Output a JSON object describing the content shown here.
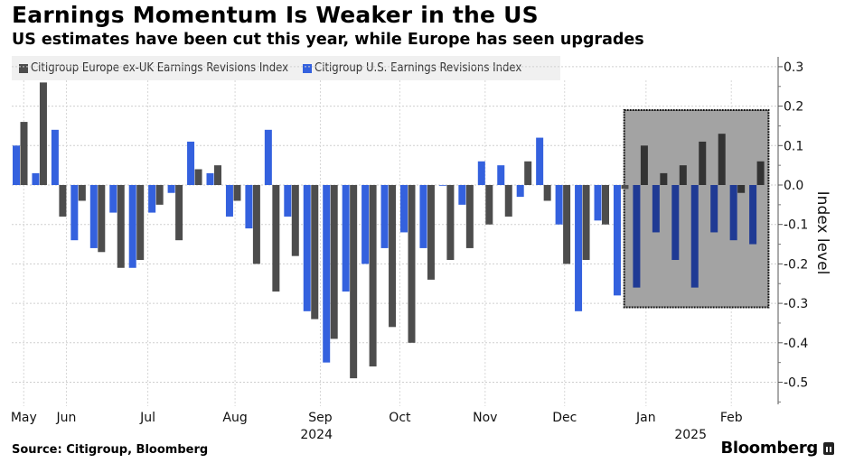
{
  "title": "Earnings Momentum Is Weaker in the US",
  "subtitle": "US estimates have been cut this year, while Europe has seen upgrades",
  "source": "Source: Citigroup, Bloomberg",
  "brand": "Bloomberg",
  "colors": {
    "europe": "#4d4d4d",
    "us": "#3461de",
    "europe_highlight": "#333333",
    "us_highlight": "#1f3a94",
    "highlight_box": "#a3a3a3",
    "legend_bg": "#f0f0f0"
  },
  "chart_data": {
    "type": "bar",
    "title": "Earnings Momentum Is Weaker in the US",
    "subtitle": "US estimates have been cut this year, while Europe has seen upgrades",
    "ylabel": "Index level",
    "xlabel": "",
    "ylim": [
      -0.55,
      0.32
    ],
    "yticks": [
      0.3,
      0.2,
      0.1,
      0.0,
      -0.1,
      -0.2,
      -0.3,
      -0.4,
      -0.5
    ],
    "ytick_labels": [
      "0.3",
      "0.2",
      "0.1",
      "0.0",
      "-0.1",
      "-0.2",
      "-0.3",
      "-0.4",
      "-0.5"
    ],
    "y_axis_position": "right",
    "grid": true,
    "legend_position": "top-left",
    "x_tick_labels": [
      {
        "label": "May",
        "index": 0.2
      },
      {
        "label": "Jun",
        "index": 2.4
      },
      {
        "label": "Jul",
        "index": 6.6
      },
      {
        "label": "Aug",
        "index": 11.1
      },
      {
        "label": "Sep",
        "index": 15.5
      },
      {
        "label": "Oct",
        "index": 19.6
      },
      {
        "label": "Nov",
        "index": 24.0
      },
      {
        "label": "Dec",
        "index": 28.1
      },
      {
        "label": "Jan",
        "index": 32.3
      },
      {
        "label": "Feb",
        "index": 36.7
      }
    ],
    "x_year_labels": [
      {
        "label": "2024",
        "index": 15.3
      },
      {
        "label": "2025",
        "index": 34.6
      }
    ],
    "highlight_region": {
      "start_index": 31.5,
      "end_index": 38.9,
      "y_top": 0.19,
      "y_bottom": -0.31
    },
    "series": [
      {
        "name": "Citigroup Europe ex-UK Earnings Revisions Index",
        "color_key": "europe",
        "values": [
          0.16,
          0.26,
          -0.08,
          -0.04,
          -0.17,
          -0.21,
          -0.19,
          -0.05,
          -0.14,
          0.04,
          0.05,
          -0.04,
          -0.2,
          -0.27,
          -0.18,
          -0.34,
          -0.39,
          -0.49,
          -0.46,
          -0.36,
          -0.4,
          -0.24,
          -0.19,
          -0.16,
          -0.1,
          -0.08,
          0.06,
          -0.04,
          -0.2,
          -0.19,
          -0.1,
          -0.01,
          0.1,
          0.03,
          0.05,
          0.11,
          0.13,
          -0.02,
          0.06
        ]
      },
      {
        "name": "Citigroup U.S. Earnings Revisions Index",
        "color_key": "us",
        "values": [
          0.1,
          0.03,
          0.14,
          -0.14,
          -0.16,
          -0.07,
          -0.21,
          -0.07,
          -0.02,
          0.11,
          0.03,
          -0.08,
          -0.11,
          0.14,
          -0.08,
          -0.32,
          -0.45,
          -0.27,
          -0.2,
          -0.16,
          -0.12,
          -0.16,
          0.0,
          -0.05,
          0.06,
          0.05,
          -0.03,
          0.12,
          -0.1,
          -0.32,
          -0.09,
          -0.28,
          -0.26,
          -0.12,
          -0.19,
          -0.26,
          -0.12,
          -0.14,
          -0.15
        ]
      }
    ]
  }
}
